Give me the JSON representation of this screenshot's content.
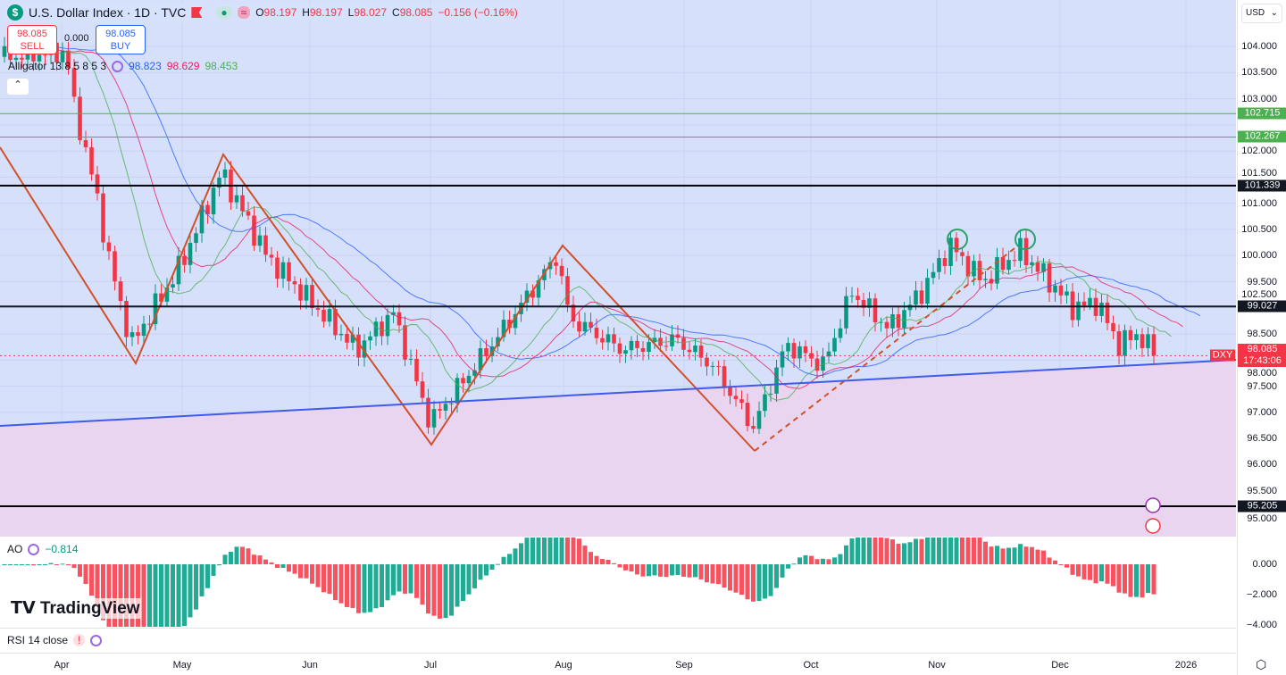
{
  "header": {
    "symbol": "U.S. Dollar Index · 1D · TVC",
    "open_label": "O",
    "open": "98.197",
    "high_label": "H",
    "high": "98.197",
    "low_label": "L",
    "low": "98.027",
    "close_label": "C",
    "close": "98.085",
    "change": "−0.156 (−0.16%)"
  },
  "trade": {
    "sell_price": "98.085",
    "sell_label": "SELL",
    "spread": "0.000",
    "buy_price": "98.085",
    "buy_label": "BUY"
  },
  "alligator": {
    "label": "Alligator 13 8 5 8 5 3",
    "jaw": "98.823",
    "teeth": "98.629",
    "lips": "98.453",
    "colors": {
      "jaw": "#2962ff",
      "teeth": "#e91e63",
      "lips": "#4caf50"
    }
  },
  "ao": {
    "label": "AO",
    "value": "−0.814",
    "ticks": [
      "0.000",
      "−2.000",
      "−4.000"
    ]
  },
  "rsi": {
    "label": "RSI 14 close"
  },
  "axis": {
    "currency": "USD",
    "price_ticks": [
      "104.000",
      "103.500",
      "103.000",
      "102.500",
      "102.000",
      "101.500",
      "101.000",
      "100.500",
      "100.000",
      "99.500",
      "98.500",
      "98.000",
      "97.500",
      "97.000",
      "96.500",
      "96.000",
      "95.500",
      "95.000"
    ],
    "time_ticks": [
      "Apr",
      "May",
      "Jun",
      "Jul",
      "Aug",
      "Sep",
      "Oct",
      "Nov",
      "Dec",
      "2026"
    ]
  },
  "levels": [
    {
      "price": "102.715",
      "color": "#4caf50"
    },
    {
      "price": "102.267",
      "color": "#4caf50"
    },
    {
      "price": "101.339",
      "color": "#000000"
    },
    {
      "price": "99.027",
      "color": "#131722"
    },
    {
      "price": "95.205",
      "color": "#000000"
    }
  ],
  "last": {
    "symbol": "DXY",
    "price": "98.085",
    "countdown": "17:43:06",
    "color": "#f23645"
  },
  "brand": "TradingView",
  "chart_data": {
    "type": "candlestick",
    "ylim": [
      94.7,
      104.9
    ],
    "up_color": "#089981",
    "down_color": "#f23645",
    "closes": [
      [
        "2025-03-18",
        103.8
      ],
      [
        "2025-04-02",
        103.9
      ],
      [
        "2025-04-04",
        102.9
      ],
      [
        "2025-04-10",
        101.0
      ],
      [
        "2025-04-12",
        100.1
      ],
      [
        "2025-04-18",
        98.3
      ],
      [
        "2025-04-30",
        99.8
      ],
      [
        "2025-05-10",
        101.6
      ],
      [
        "2025-05-21",
        100.0
      ],
      [
        "2025-06-01",
        99.1
      ],
      [
        "2025-06-12",
        98.2
      ],
      [
        "2025-06-21",
        98.9
      ],
      [
        "2025-06-30",
        96.8
      ],
      [
        "2025-07-08",
        97.6
      ],
      [
        "2025-07-17",
        98.5
      ],
      [
        "2025-07-31",
        100.0
      ],
      [
        "2025-08-03",
        98.8
      ],
      [
        "2025-08-16",
        98.2
      ],
      [
        "2025-08-29",
        98.4
      ],
      [
        "2025-09-07",
        97.9
      ],
      [
        "2025-09-17",
        96.7
      ],
      [
        "2025-09-25",
        98.3
      ],
      [
        "2025-10-04",
        97.9
      ],
      [
        "2025-10-11",
        99.3
      ],
      [
        "2025-10-20",
        98.6
      ],
      [
        "2025-10-28",
        99.3
      ],
      [
        "2025-11-04",
        100.2
      ],
      [
        "2025-11-12",
        99.5
      ],
      [
        "2025-11-21",
        100.1
      ],
      [
        "2025-11-26",
        99.7
      ],
      [
        "2025-12-04",
        99.0
      ],
      [
        "2025-12-10",
        99.1
      ],
      [
        "2025-12-15",
        98.3
      ],
      [
        "2025-12-20",
        98.5
      ],
      [
        "2025-12-24",
        98.085
      ]
    ]
  }
}
